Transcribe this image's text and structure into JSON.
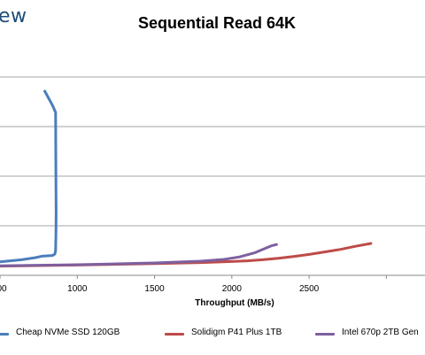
{
  "brand": "ew",
  "chart_data": {
    "type": "line",
    "title": "Sequential Read 64K",
    "xlabel": "Throughput (MB/s)",
    "ylabel": "",
    "xlim": [
      500,
      3250
    ],
    "x_ticks": [
      "1000",
      "1500",
      "2000",
      "2500"
    ],
    "x_tick_values": [
      1000,
      1500,
      2000,
      2500
    ],
    "x_tick_partial": "00",
    "grid": true,
    "legend_position": "bottom",
    "series": [
      {
        "name": "Cheap NVMe SSD 120GB",
        "color": "#4a7ebb",
        "x": [
          500,
          640,
          730,
          770,
          840,
          855,
          860,
          862,
          863,
          862,
          860,
          840,
          790
        ],
        "y": [
          3.8,
          4.4,
          5.0,
          5.4,
          5.6,
          6.0,
          7.0,
          12,
          18,
          25,
          46,
          48,
          52
        ]
      },
      {
        "name": "Solidigm P41 Plus 1TB",
        "color": "#be4b48",
        "x": [
          500,
          1000,
          1500,
          1800,
          2000,
          2100,
          2200,
          2300,
          2400,
          2500,
          2600,
          2700,
          2800,
          2900
        ],
        "y": [
          2.6,
          2.9,
          3.3,
          3.6,
          3.9,
          4.1,
          4.4,
          4.8,
          5.3,
          5.9,
          6.6,
          7.3,
          8.2,
          9.0
        ]
      },
      {
        "name": "Intel 670p 2TB Gen",
        "color": "#7d60a0",
        "x": [
          500,
          1000,
          1500,
          1800,
          1950,
          2050,
          2150,
          2200,
          2260,
          2290
        ],
        "y": [
          2.7,
          3.0,
          3.5,
          4.0,
          4.5,
          5.2,
          6.4,
          7.3,
          8.4,
          8.7
        ]
      }
    ]
  }
}
